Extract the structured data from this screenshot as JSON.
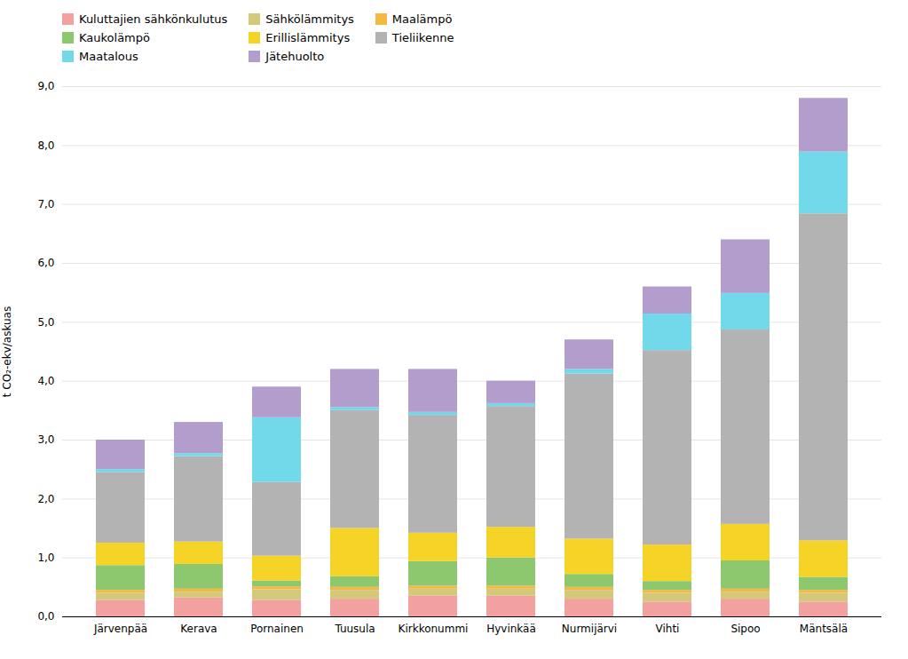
{
  "chart_data": {
    "type": "bar",
    "stacked": true,
    "ylabel": "t CO₂-ekv/askuas",
    "categories": [
      "Järvenpää",
      "Kerava",
      "Pornainen",
      "Tuusula",
      "Kirkkonummi",
      "Hyvinkää",
      "Nurmijärvi",
      "Vihti",
      "Sipoo",
      "Mäntsälä"
    ],
    "series": [
      {
        "name": "Kuluttajien sähkönkulutus",
        "color": "#f2a0a0",
        "values": [
          0.28,
          0.32,
          0.28,
          0.3,
          0.35,
          0.35,
          0.3,
          0.25,
          0.3,
          0.25
        ]
      },
      {
        "name": "Sähkölämmitys",
        "color": "#d4c87a",
        "values": [
          0.12,
          0.1,
          0.18,
          0.15,
          0.12,
          0.12,
          0.15,
          0.15,
          0.12,
          0.15
        ]
      },
      {
        "name": "Maalämpö",
        "color": "#f5b942",
        "values": [
          0.05,
          0.05,
          0.05,
          0.05,
          0.05,
          0.05,
          0.05,
          0.05,
          0.05,
          0.05
        ]
      },
      {
        "name": "Kaukolämpö",
        "color": "#8dc86e",
        "values": [
          0.42,
          0.42,
          0.1,
          0.18,
          0.42,
          0.48,
          0.22,
          0.15,
          0.48,
          0.22
        ]
      },
      {
        "name": "Erillislämmitys",
        "color": "#f5d327",
        "values": [
          0.38,
          0.38,
          0.42,
          0.82,
          0.48,
          0.52,
          0.6,
          0.62,
          0.62,
          0.62
        ]
      },
      {
        "name": "Tieliikenne",
        "color": "#b3b3b3",
        "values": [
          1.2,
          1.45,
          1.25,
          2.0,
          2.0,
          2.05,
          2.8,
          3.3,
          3.3,
          5.55
        ]
      },
      {
        "name": "Maatalous",
        "color": "#72d9ea",
        "values": [
          0.05,
          0.05,
          1.1,
          0.05,
          0.05,
          0.05,
          0.08,
          0.62,
          0.62,
          1.05
        ]
      },
      {
        "name": "Jätehuolto",
        "color": "#b39dcc",
        "values": [
          0.5,
          0.53,
          0.52,
          0.65,
          0.73,
          0.38,
          0.5,
          0.46,
          0.91,
          0.91
        ]
      }
    ],
    "ylim": [
      0,
      9.0
    ],
    "yticks": [
      {
        "value": 0.0,
        "label": "0,0"
      },
      {
        "value": 1.0,
        "label": "1,0"
      },
      {
        "value": 2.0,
        "label": "2,0"
      },
      {
        "value": 3.0,
        "label": "3,0"
      },
      {
        "value": 4.0,
        "label": "4,0"
      },
      {
        "value": 5.0,
        "label": "5,0"
      },
      {
        "value": 6.0,
        "label": "6,0"
      },
      {
        "value": 7.0,
        "label": "7,0"
      },
      {
        "value": 8.0,
        "label": "8,0"
      },
      {
        "value": 9.0,
        "label": "9,0"
      }
    ],
    "grid": true,
    "legend": "top"
  }
}
